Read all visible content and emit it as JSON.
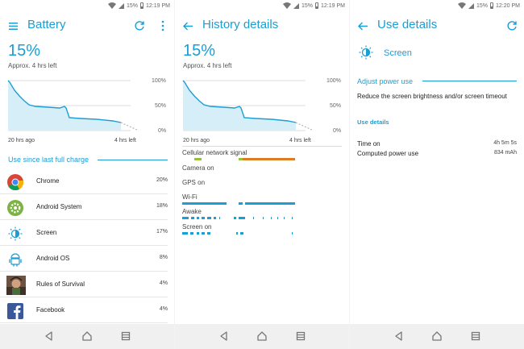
{
  "colors": {
    "accent": "#1a9ed4",
    "cellular": "#e07b22",
    "cellular_weak": "#9abf3c"
  },
  "panels": [
    {
      "status": {
        "battery": "15%",
        "time": "12:19 PM"
      },
      "title": "Battery",
      "percent": "15%",
      "approx": "Approx. 4 hrs left",
      "chart": {
        "y_labels": [
          "100%",
          "50%",
          "0%"
        ],
        "x_start": "20 hrs ago",
        "x_end": "4 hrs left"
      },
      "section": "Use since last full charge",
      "apps": [
        {
          "name": "Chrome",
          "value": "20%",
          "icon": "chrome-icon"
        },
        {
          "name": "Android System",
          "value": "18%",
          "icon": "android-system-icon"
        },
        {
          "name": "Screen",
          "value": "17%",
          "icon": "screen-brightness-icon"
        },
        {
          "name": "Android OS",
          "value": "8%",
          "icon": "android-os-icon"
        },
        {
          "name": "Rules of Survival",
          "value": "4%",
          "icon": "rules-of-survival-icon"
        },
        {
          "name": "Facebook",
          "value": "4%",
          "icon": "facebook-icon"
        }
      ]
    },
    {
      "status": {
        "battery": "15%",
        "time": "12:19 PM"
      },
      "title": "History details",
      "percent": "15%",
      "approx": "Approx. 4 hrs left",
      "chart": {
        "y_labels": [
          "100%",
          "50%",
          "0%"
        ],
        "x_start": "20 hrs ago",
        "x_end": "4 hrs left"
      },
      "rows": [
        "Cellular network signal",
        "Camera on",
        "GPS on",
        "Wi-Fi",
        "Awake",
        "Screen on"
      ]
    },
    {
      "status": {
        "battery": "15%",
        "time": "12:20 PM"
      },
      "title": "Use details",
      "item": "Screen",
      "adjust_head": "Adjust power use",
      "adjust_text": "Reduce the screen brightness and/or screen timeout",
      "use_details": "Use details",
      "stats": [
        {
          "label": "Time on",
          "value": "4h 5m 5s"
        },
        {
          "label": "Computed power use",
          "value": "834 mAh"
        }
      ]
    }
  ]
}
